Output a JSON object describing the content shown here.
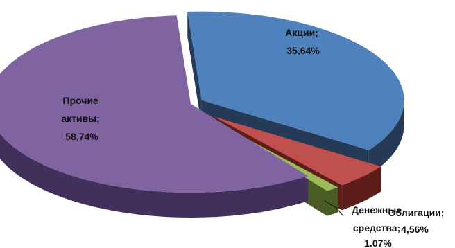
{
  "chart_data": {
    "type": "pie",
    "three_d": true,
    "exploded": true,
    "legend": "none",
    "slices": [
      {
        "label_line1": "Акции;",
        "label_line2": "35,64%",
        "value": 35.64,
        "color": "#4f81bd",
        "side_color": "#243a57"
      },
      {
        "label_line1": "Облигации;",
        "label_line2": "4,56%",
        "value": 4.56,
        "color": "#c0504d",
        "side_color": "#5c1d1b"
      },
      {
        "label_line1": "Денежные",
        "label_line2": "средства;",
        "label_line3": "1.07%",
        "value": 1.07,
        "color": "#9bbb59",
        "side_color": "#4a5b26"
      },
      {
        "label_line1": "Прочие",
        "label_line2": "активы;",
        "label_line3": "58,74%",
        "value": 58.74,
        "color": "#8064a2",
        "side_color": "#41305a"
      }
    ]
  }
}
